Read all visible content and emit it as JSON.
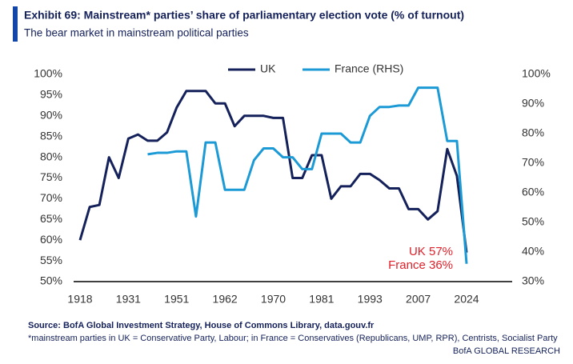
{
  "chart_data": {
    "type": "line",
    "title": "Exhibit 69: Mainstream* parties’ share of parliamentary election vote (% of turnout)",
    "subtitle": "The bear market in mainstream political parties",
    "categories": [
      "1918",
      null,
      null,
      null,
      null,
      "1931",
      null,
      null,
      null,
      null,
      "1951",
      null,
      null,
      null,
      null,
      "1962",
      null,
      null,
      null,
      null,
      "1970",
      null,
      null,
      null,
      null,
      "1981",
      null,
      null,
      null,
      null,
      "1993",
      null,
      null,
      null,
      null,
      "2007",
      null,
      null,
      null,
      null,
      "2024"
    ],
    "series": [
      {
        "name": "UK",
        "color": "#14215a",
        "axis": "y",
        "values": [
          60,
          68,
          68.5,
          80,
          75,
          84.5,
          85.5,
          84,
          84,
          86,
          92,
          96,
          96,
          96,
          93,
          93,
          87.5,
          90,
          90,
          90,
          89.5,
          89.5,
          75,
          75,
          80.5,
          80.5,
          70,
          73,
          73,
          76,
          76,
          74.5,
          72.5,
          72.5,
          67.5,
          67.5,
          65,
          67,
          82,
          75.5,
          57
        ]
      },
      {
        "name": "France (RHS)",
        "color": "#1c9ad6",
        "axis": "y2",
        "values": [
          null,
          null,
          null,
          null,
          null,
          null,
          null,
          73,
          73.5,
          73.5,
          74,
          74,
          52,
          77,
          77,
          61,
          61,
          61,
          71,
          75,
          75,
          72,
          72,
          68,
          68,
          80,
          80,
          80,
          77,
          77,
          86,
          89,
          89,
          89.5,
          89.5,
          95.5,
          95.5,
          95.5,
          77.5,
          77.5,
          36
        ]
      }
    ],
    "ylim": [
      50,
      100
    ],
    "yticks": [
      {
        "value": 50,
        "label": "50%"
      },
      {
        "value": 55,
        "label": "55%"
      },
      {
        "value": 60,
        "label": "60%"
      },
      {
        "value": 65,
        "label": "65%"
      },
      {
        "value": 70,
        "label": "70%"
      },
      {
        "value": 75,
        "label": "75%"
      },
      {
        "value": 80,
        "label": "80%"
      },
      {
        "value": 85,
        "label": "85%"
      },
      {
        "value": 90,
        "label": "90%"
      },
      {
        "value": 95,
        "label": "95%"
      },
      {
        "value": 100,
        "label": "100%"
      }
    ],
    "y2lim": [
      30,
      100
    ],
    "y2ticks": [
      {
        "value": 30,
        "label": "30%"
      },
      {
        "value": 40,
        "label": "40%"
      },
      {
        "value": 50,
        "label": "50%"
      },
      {
        "value": 60,
        "label": "60%"
      },
      {
        "value": 70,
        "label": "70%"
      },
      {
        "value": 80,
        "label": "80%"
      },
      {
        "value": 90,
        "label": "90%"
      },
      {
        "value": 100,
        "label": "100%"
      }
    ],
    "legend": "top",
    "annotations": [
      {
        "text": "UK 57%",
        "color": "#e0202a"
      },
      {
        "text": "France 36%",
        "color": "#e0202a"
      }
    ],
    "source": "Source: BofA Global Investment Strategy, House of Commons Library, data.gouv.fr",
    "footnote": "*mainstream parties in UK = Conservative Party, Labour; in France = Conservatives (Republicans, UMP, RPR), Centrists, Socialist Party",
    "credit": "BofA GLOBAL RESEARCH"
  }
}
